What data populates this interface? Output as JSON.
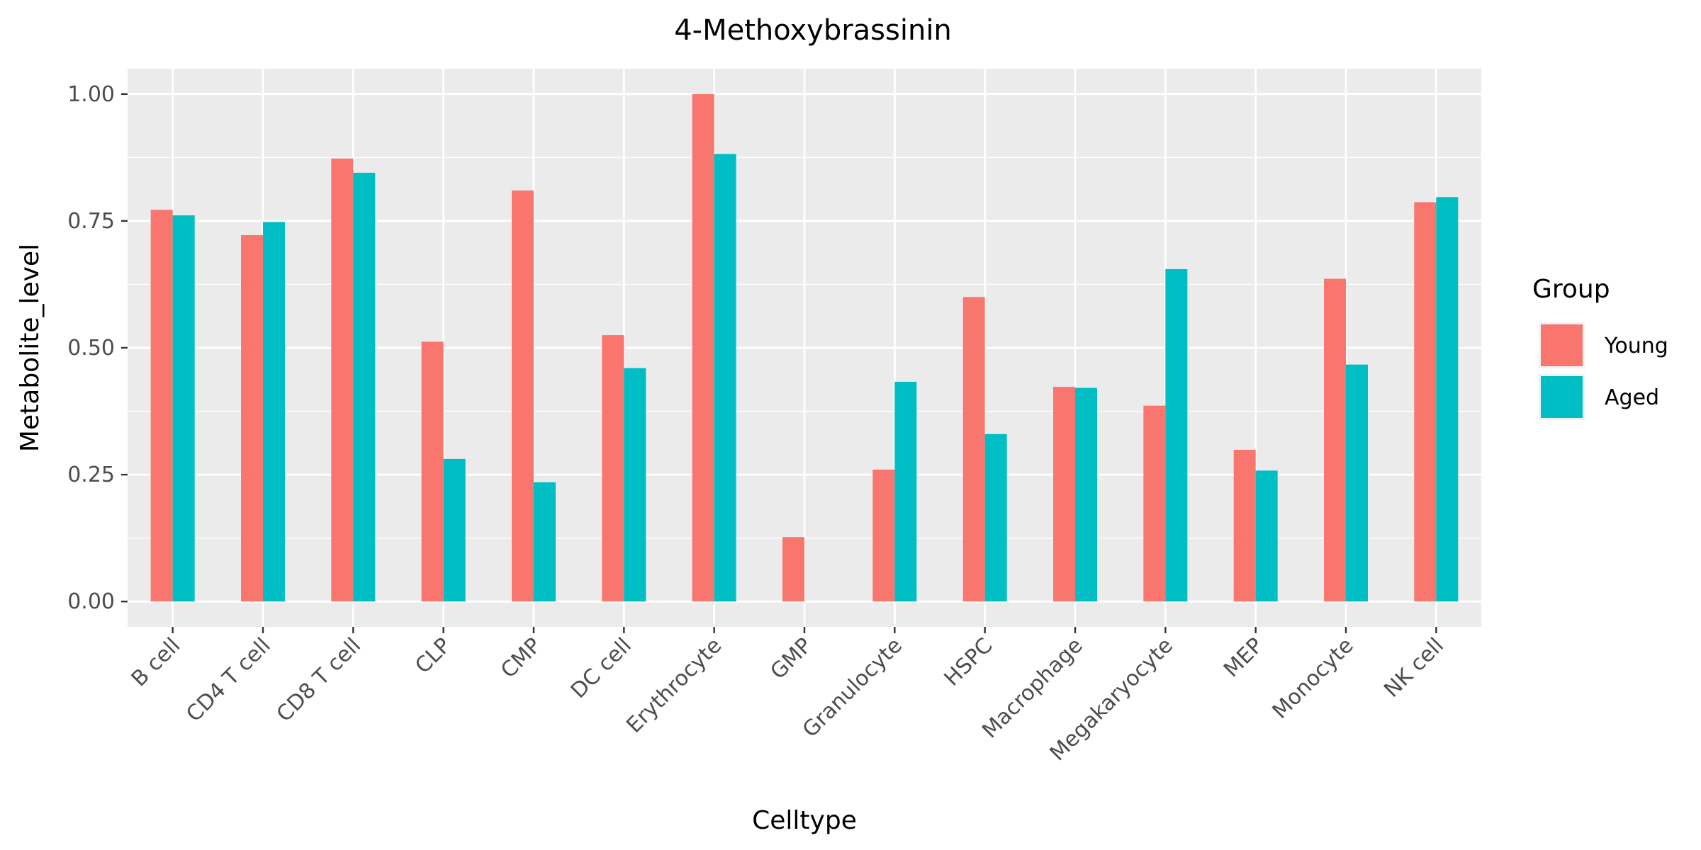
{
  "chart_data": {
    "type": "bar",
    "title": "4-Methoxybrassinin",
    "xlabel": "Celltype",
    "ylabel": "Metabolite_level",
    "categories": [
      "B cell",
      "CD4 T cell",
      "CD8 T cell",
      "CLP",
      "CMP",
      "DC cell",
      "Erythrocyte",
      "GMP",
      "Granulocyte",
      "HSPC",
      "Macrophage",
      "Megakaryocyte",
      "MEP",
      "Monocyte",
      "NK cell"
    ],
    "series": [
      {
        "name": "Young",
        "color": "#F8766D",
        "values": [
          0.772,
          0.722,
          0.873,
          0.512,
          0.81,
          0.525,
          1.0,
          0.127,
          0.26,
          0.6,
          0.423,
          0.386,
          0.299,
          0.636,
          0.787
        ]
      },
      {
        "name": "Aged",
        "color": "#00BFC4",
        "values": [
          0.761,
          0.748,
          0.845,
          0.281,
          0.235,
          0.46,
          0.882,
          null,
          0.433,
          0.33,
          0.421,
          0.655,
          0.258,
          0.467,
          0.797
        ]
      }
    ],
    "ylim": [
      -0.05,
      1.05
    ],
    "yticks": [
      0.0,
      0.25,
      0.5,
      0.75,
      1.0
    ],
    "ytick_labels": [
      "0.00",
      "0.25",
      "0.50",
      "0.75",
      "1.00"
    ],
    "legend": {
      "title": "Group",
      "position": "right"
    },
    "grid": true,
    "panel_background": "#EBEBEB"
  }
}
